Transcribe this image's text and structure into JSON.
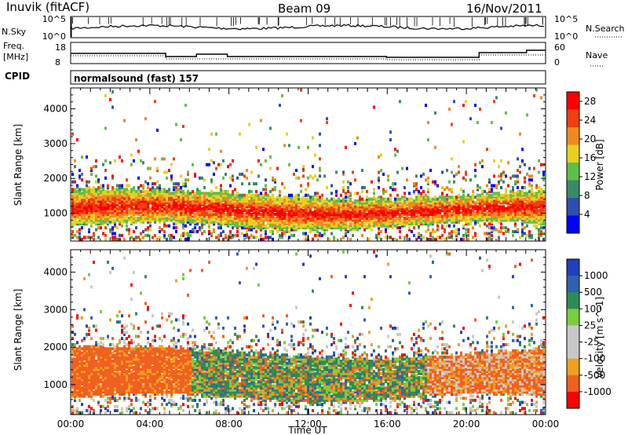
{
  "header": {
    "station": "Inuvik (fitACF)",
    "beam": "Beam 09",
    "date": "16/Nov/2011"
  },
  "panels": {
    "nsky": {
      "label": "N.Sky",
      "tick_top": "10^5",
      "tick_bottom": "10^0"
    },
    "nsearch": {
      "label": "N.Search",
      "tick_top": "10^5",
      "tick_bottom": "10^0"
    },
    "freq": {
      "label_line1": "Freq.",
      "label_line2": "[MHz]",
      "tick_top": "18",
      "tick_bottom": "8"
    },
    "nave": {
      "label": "Nave",
      "tick_top": "60",
      "tick_bottom": "0"
    },
    "cpid": {
      "label": "CPID",
      "value": "normalsound (fast) 157"
    }
  },
  "colors": {
    "power_scale": [
      "#0000ff",
      "#2f4fb0",
      "#3a8a6a",
      "#5fbf4a",
      "#e8d020",
      "#f08a20",
      "#f04010",
      "#ff0000"
    ],
    "velocity_scale": [
      "#ff0000",
      "#f06020",
      "#f0a020",
      "#c8c8c8",
      "#c8c8c8",
      "#7acc40",
      "#2e8b57",
      "#3060b0",
      "#2040c0"
    ]
  },
  "chart_data": [
    {
      "type": "heatmap",
      "title": "",
      "xlabel": "",
      "ylabel": "Slant Range [km]",
      "ylim": [
        200,
        4600
      ],
      "xlim": [
        "00:00",
        "24:00"
      ],
      "yticks": [
        "1000",
        "2000",
        "3000",
        "4000"
      ],
      "colorbar": {
        "label": "Power [dB]",
        "ticks": [
          "4",
          "8",
          "12",
          "16",
          "20",
          "24",
          "28"
        ],
        "range": [
          0,
          30
        ]
      },
      "main_band_range_km": [
        600,
        1500
      ]
    },
    {
      "type": "heatmap",
      "title": "",
      "xlabel": "Time UT",
      "ylabel": "Slant Range [km]",
      "ylim": [
        200,
        4600
      ],
      "xlim": [
        "00:00",
        "24:00"
      ],
      "xticks": [
        "00:00",
        "04:00",
        "08:00",
        "12:00",
        "16:00",
        "20:00",
        "00:00"
      ],
      "yticks": [
        "1000",
        "2000",
        "3000",
        "4000"
      ],
      "colorbar": {
        "label": "Velocity [m s^-1]",
        "ticks": [
          "1000",
          "500",
          "100",
          "25",
          "-25",
          "-100",
          "-500",
          "-1000"
        ]
      },
      "main_band_range_km": [
        600,
        1800
      ]
    }
  ]
}
